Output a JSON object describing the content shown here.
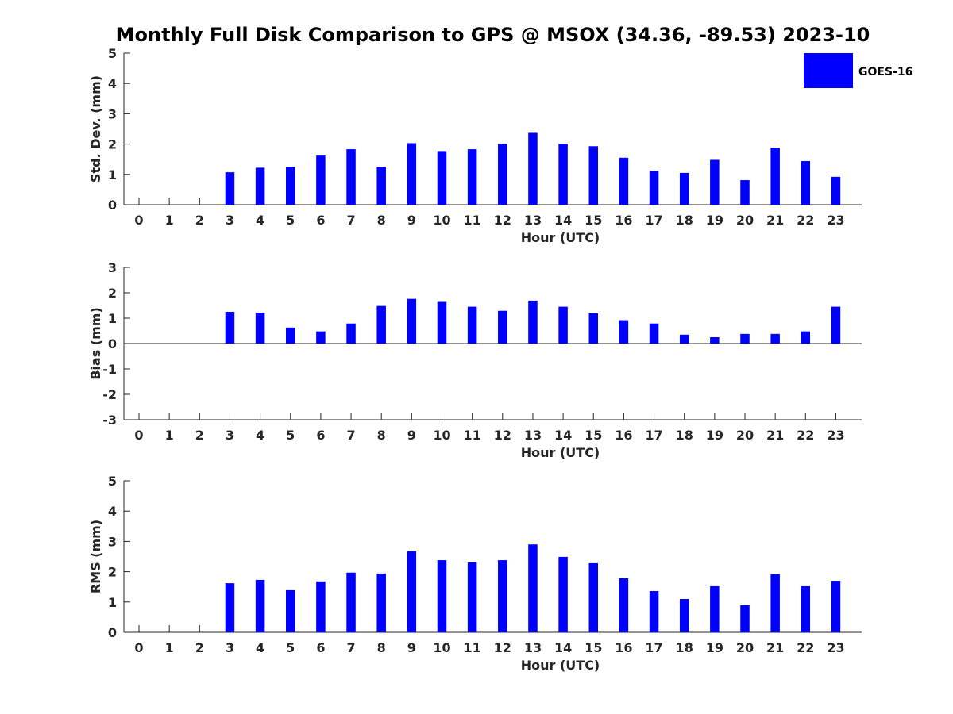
{
  "title": "Monthly Full Disk Comparison to GPS @ MSOX (34.36, -89.53) 2023-10",
  "legend": {
    "label": "GOES-16",
    "color": "#0000ff",
    "location": "top-right"
  },
  "chart_data": [
    {
      "type": "bar",
      "ylabel": "Std. Dev. (mm)",
      "xlabel": "Hour (UTC)",
      "ylim": [
        0,
        5
      ],
      "yticks": [
        0,
        1,
        2,
        3,
        4,
        5
      ],
      "categories": [
        0,
        1,
        2,
        3,
        4,
        5,
        6,
        7,
        8,
        9,
        10,
        11,
        12,
        13,
        14,
        15,
        16,
        17,
        18,
        19,
        20,
        21,
        22,
        23
      ],
      "series": [
        {
          "name": "GOES-16",
          "color": "#0000ff",
          "values": [
            null,
            null,
            null,
            1.07,
            1.22,
            1.25,
            1.62,
            1.83,
            1.25,
            2.03,
            1.77,
            1.83,
            2.01,
            2.37,
            2.01,
            1.93,
            1.55,
            1.12,
            1.05,
            1.48,
            0.81,
            1.88,
            1.44,
            0.92
          ]
        }
      ]
    },
    {
      "type": "bar",
      "ylabel": "Bias (mm)",
      "xlabel": "Hour (UTC)",
      "ylim": [
        -3,
        3
      ],
      "yticks": [
        -3,
        -2,
        -1,
        0,
        1,
        2,
        3
      ],
      "categories": [
        0,
        1,
        2,
        3,
        4,
        5,
        6,
        7,
        8,
        9,
        10,
        11,
        12,
        13,
        14,
        15,
        16,
        17,
        18,
        19,
        20,
        21,
        22,
        23
      ],
      "series": [
        {
          "name": "GOES-16",
          "color": "#0000ff",
          "values": [
            null,
            null,
            null,
            1.25,
            1.22,
            0.63,
            0.48,
            0.79,
            1.48,
            1.76,
            1.64,
            1.45,
            1.29,
            1.69,
            1.45,
            1.19,
            0.92,
            0.79,
            0.35,
            0.25,
            0.38,
            0.38,
            0.48,
            1.45
          ]
        }
      ]
    },
    {
      "type": "bar",
      "ylabel": "RMS (mm)",
      "xlabel": "Hour (UTC)",
      "ylim": [
        0,
        5
      ],
      "yticks": [
        0,
        1,
        2,
        3,
        4,
        5
      ],
      "categories": [
        0,
        1,
        2,
        3,
        4,
        5,
        6,
        7,
        8,
        9,
        10,
        11,
        12,
        13,
        14,
        15,
        16,
        17,
        18,
        19,
        20,
        21,
        22,
        23
      ],
      "series": [
        {
          "name": "GOES-16",
          "color": "#0000ff",
          "values": [
            null,
            null,
            null,
            1.62,
            1.73,
            1.39,
            1.68,
            1.97,
            1.94,
            2.67,
            2.38,
            2.31,
            2.38,
            2.9,
            2.49,
            2.28,
            1.78,
            1.36,
            1.1,
            1.52,
            0.89,
            1.92,
            1.52,
            1.7
          ]
        }
      ]
    }
  ]
}
